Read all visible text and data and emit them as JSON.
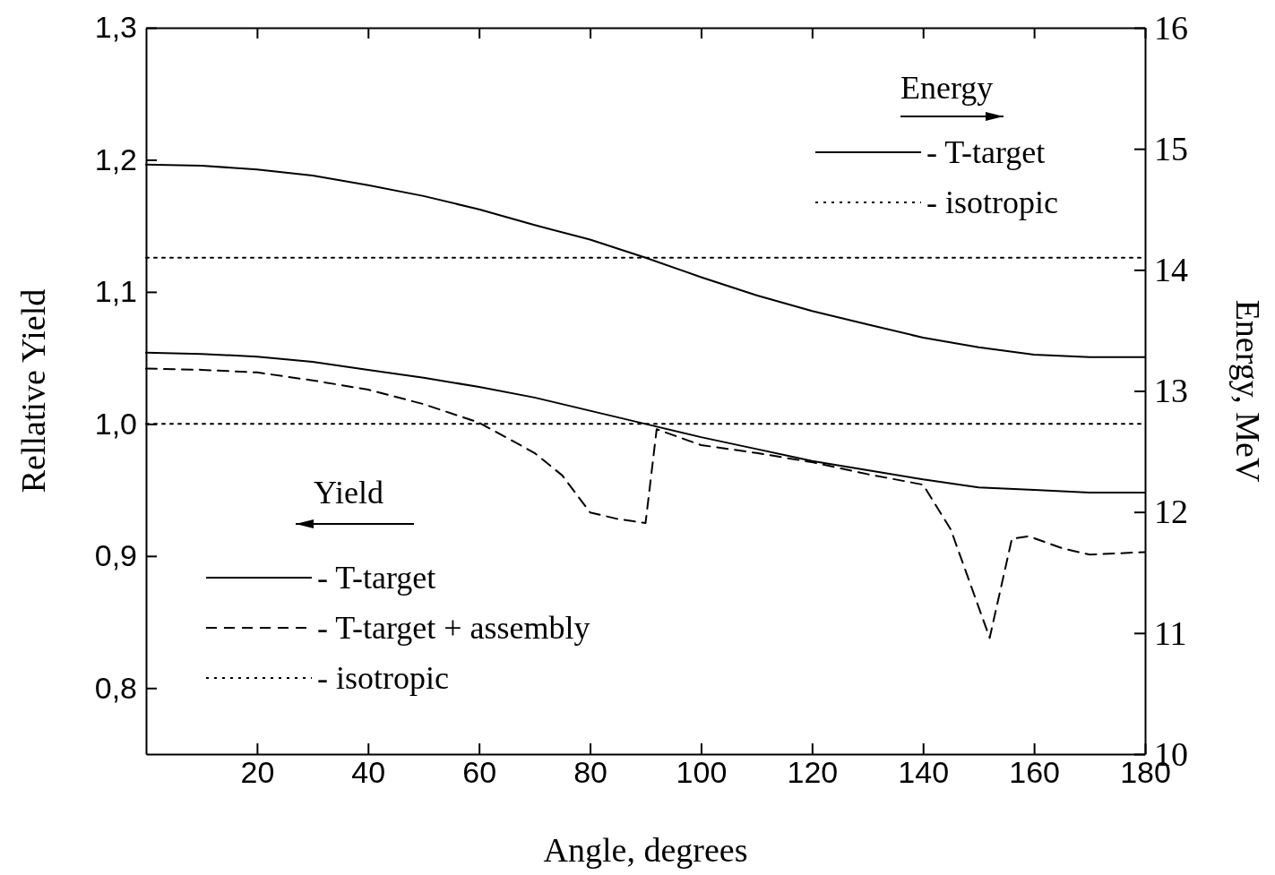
{
  "chart_data": {
    "type": "line",
    "xlabel": "Angle, degrees",
    "ylabel": "Rellative Yield",
    "y2label": "Energy, MeV",
    "xlim": [
      0,
      180
    ],
    "xticks": [
      20,
      40,
      60,
      80,
      100,
      120,
      140,
      160,
      180
    ],
    "ylim": [
      0.75,
      1.3
    ],
    "yticks": [
      {
        "value": 0.8,
        "label": "0,8"
      },
      {
        "value": 0.9,
        "label": "0,9"
      },
      {
        "value": 1.0,
        "label": "1,0"
      },
      {
        "value": 1.1,
        "label": "1,1"
      },
      {
        "value": 1.2,
        "label": "1,2"
      },
      {
        "value": 1.3,
        "label": "1,3"
      }
    ],
    "y2lim": [
      10,
      16
    ],
    "y2ticks": [
      10,
      11,
      12,
      13,
      14,
      15,
      16
    ],
    "legend": "bottom left",
    "grid": false,
    "marker": "none",
    "annotations": [
      "Energy",
      "Yield"
    ],
    "series": [
      {
        "name": "- T-target",
        "color": "#000000",
        "line_style": "solid",
        "axis": "y2",
        "x": [
          0,
          10,
          20,
          30,
          40,
          50,
          60,
          70,
          80,
          90,
          100,
          110,
          120,
          130,
          140,
          150,
          160,
          170,
          180
        ],
        "values": [
          14.87,
          14.86,
          14.83,
          14.78,
          14.7,
          14.61,
          14.5,
          14.37,
          14.25,
          14.1,
          13.94,
          13.79,
          13.66,
          13.55,
          13.44,
          13.36,
          13.3,
          13.28,
          13.28
        ]
      },
      {
        "name": "- isotropic",
        "color": "#000000",
        "line_style": "dotted",
        "axis": "y2",
        "x": [
          0,
          180
        ],
        "values": [
          14.1,
          14.1
        ]
      },
      {
        "name": "- T-target",
        "color": "#000000",
        "line_style": "solid",
        "x": [
          0,
          10,
          20,
          30,
          40,
          50,
          60,
          70,
          80,
          90,
          100,
          110,
          120,
          130,
          140,
          150,
          160,
          170,
          180
        ],
        "values": [
          1.054,
          1.053,
          1.051,
          1.047,
          1.041,
          1.035,
          1.028,
          1.02,
          1.01,
          1.0,
          0.99,
          0.981,
          0.972,
          0.965,
          0.958,
          0.952,
          0.95,
          0.948,
          0.948
        ]
      },
      {
        "name": "- T-target + assembly",
        "color": "#000000",
        "line_style": "dashed",
        "x": [
          0,
          10,
          20,
          30,
          40,
          50,
          60,
          70,
          75,
          80,
          85,
          90,
          92,
          100,
          110,
          120,
          130,
          140,
          145,
          152,
          156,
          159,
          165,
          170,
          180
        ],
        "values": [
          1.042,
          1.041,
          1.039,
          1.033,
          1.026,
          1.015,
          1.001,
          0.978,
          0.961,
          0.933,
          0.928,
          0.925,
          0.996,
          0.984,
          0.978,
          0.971,
          0.962,
          0.954,
          0.92,
          0.838,
          0.913,
          0.915,
          0.906,
          0.901,
          0.903
        ]
      },
      {
        "name": "- isotropic",
        "color": "#000000",
        "line_style": "dotted",
        "x": [
          0,
          180
        ],
        "values": [
          1.0,
          1.0
        ]
      }
    ]
  }
}
